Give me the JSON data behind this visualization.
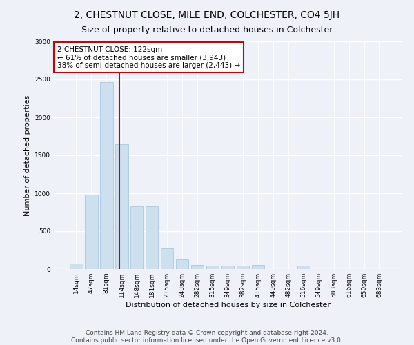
{
  "title": "2, CHESTNUT CLOSE, MILE END, COLCHESTER, CO4 5JH",
  "subtitle": "Size of property relative to detached houses in Colchester",
  "xlabel": "Distribution of detached houses by size in Colchester",
  "ylabel": "Number of detached properties",
  "categories": [
    "14sqm",
    "47sqm",
    "81sqm",
    "114sqm",
    "148sqm",
    "181sqm",
    "215sqm",
    "248sqm",
    "282sqm",
    "315sqm",
    "349sqm",
    "382sqm",
    "415sqm",
    "449sqm",
    "482sqm",
    "516sqm",
    "549sqm",
    "583sqm",
    "616sqm",
    "650sqm",
    "683sqm"
  ],
  "values": [
    70,
    980,
    2460,
    1650,
    830,
    830,
    270,
    130,
    55,
    50,
    50,
    50,
    55,
    0,
    0,
    45,
    0,
    0,
    0,
    0,
    0
  ],
  "bar_color": "#cce0f0",
  "bar_edge_color": "#aac8e0",
  "vline_x_idx": 3,
  "vline_color": "#cc0000",
  "annotation_text": "2 CHESTNUT CLOSE: 122sqm\n← 61% of detached houses are smaller (3,943)\n38% of semi-detached houses are larger (2,443) →",
  "annotation_box_facecolor": "#ffffff",
  "annotation_box_edgecolor": "#cc0000",
  "ylim": [
    0,
    3000
  ],
  "yticks": [
    0,
    500,
    1000,
    1500,
    2000,
    2500,
    3000
  ],
  "footer": "Contains HM Land Registry data © Crown copyright and database right 2024.\nContains public sector information licensed under the Open Government Licence v3.0.",
  "bg_color": "#eef2f8",
  "title_fontsize": 10,
  "subtitle_fontsize": 9,
  "ylabel_fontsize": 8,
  "xlabel_fontsize": 8,
  "tick_fontsize": 6.5,
  "annot_fontsize": 7.5,
  "footer_fontsize": 6.5
}
